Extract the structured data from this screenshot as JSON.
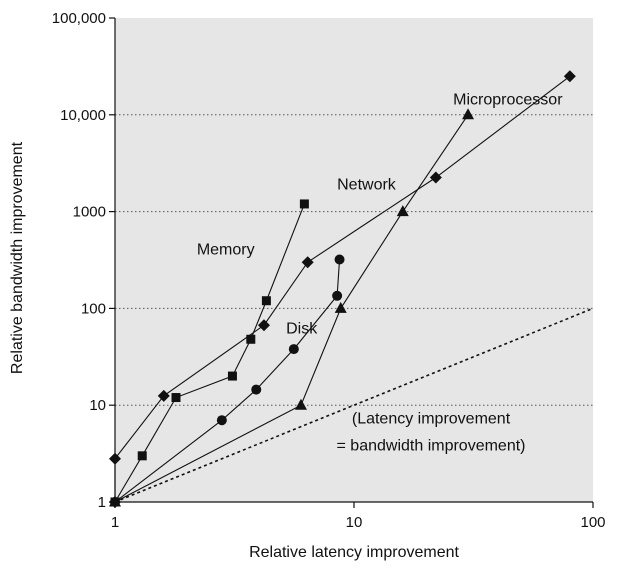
{
  "chart_data": {
    "type": "line",
    "x_scale": "log",
    "y_scale": "log",
    "xlabel": "Relative latency improvement",
    "ylabel": "Relative bandwidth improvement",
    "xlim": [
      1,
      100
    ],
    "ylim": [
      1,
      100000
    ],
    "x_ticks": [
      1,
      10,
      100
    ],
    "x_tick_labels": [
      "1",
      "10",
      "100"
    ],
    "y_ticks": [
      1,
      10,
      100,
      1000,
      10000,
      100000
    ],
    "y_tick_labels": [
      "1",
      "10",
      "100",
      "1000",
      "10,000",
      "100,000"
    ],
    "grid": "horizontal dotted",
    "plot_background": "#e6e6e6",
    "line_color": "#111111",
    "series": [
      {
        "name": "Microprocessor",
        "marker": "diamond",
        "x": [
          1,
          1,
          1.6,
          4.2,
          6.4,
          22,
          80
        ],
        "y": [
          1,
          2.8,
          12.5,
          67,
          300,
          2250,
          25000
        ]
      },
      {
        "name": "Memory",
        "marker": "square",
        "x": [
          1,
          1.3,
          1.8,
          3.1,
          3.7,
          4.3,
          6.2
        ],
        "y": [
          1,
          3,
          12,
          20,
          48,
          120,
          1200
        ]
      },
      {
        "name": "Disk",
        "marker": "circle",
        "x": [
          1,
          2.8,
          3.9,
          5.6,
          8.5,
          8.7
        ],
        "y": [
          1,
          7,
          14.5,
          38,
          135,
          320
        ]
      },
      {
        "name": "Network",
        "marker": "triangle",
        "x": [
          1,
          6,
          8.8,
          16,
          30
        ],
        "y": [
          1,
          10,
          100,
          1000,
          10000
        ]
      }
    ],
    "reference_line": {
      "style": "dotted",
      "x": [
        1,
        100
      ],
      "y": [
        1,
        100
      ]
    },
    "annotations": [
      {
        "text": "Microprocessor",
        "x": 26,
        "y": 12800,
        "anchor": "start"
      },
      {
        "text": "Network",
        "x": 8.5,
        "y": 1700,
        "anchor": "start"
      },
      {
        "text": "Memory",
        "x": 2.2,
        "y": 360,
        "anchor": "start"
      },
      {
        "text": "Disk",
        "x": 5.2,
        "y": 55,
        "anchor": "start"
      },
      {
        "text": "(Latency improvement",
        "x": 21,
        "y": 6.5,
        "anchor": "middle"
      },
      {
        "text": "= bandwidth improvement)",
        "x": 21,
        "y": 3.4,
        "anchor": "middle"
      }
    ]
  }
}
